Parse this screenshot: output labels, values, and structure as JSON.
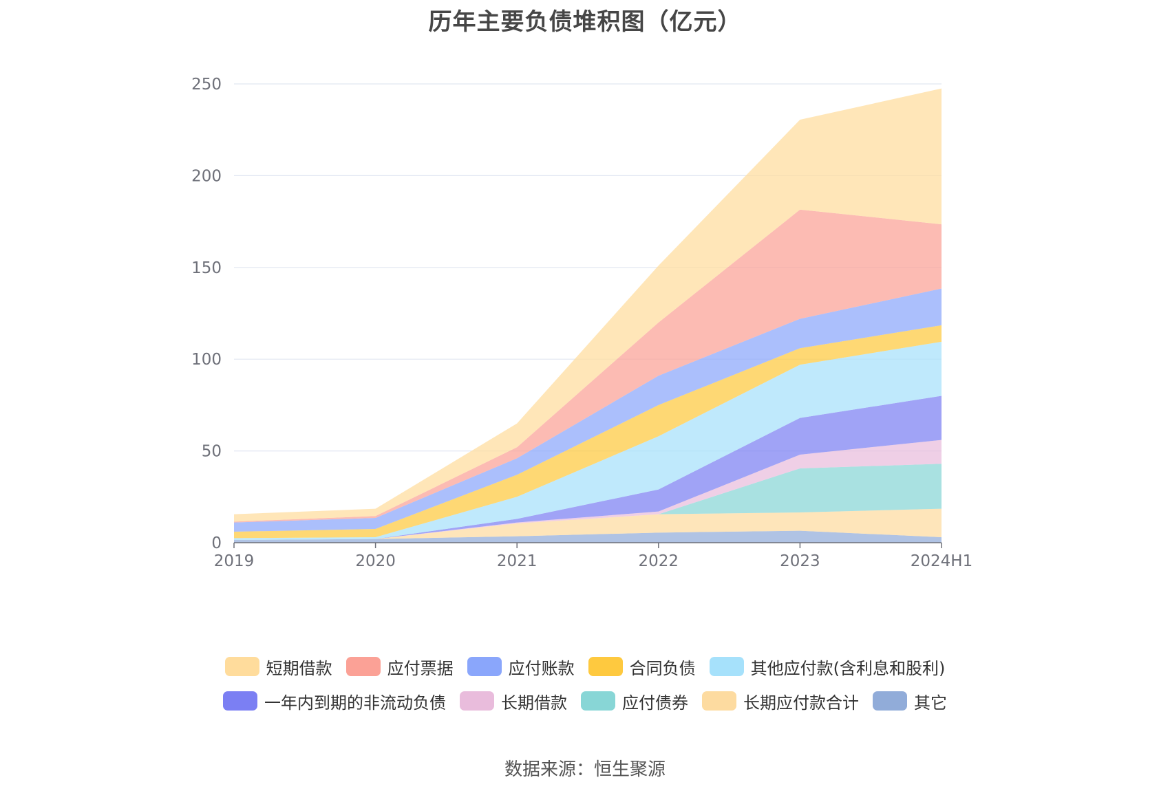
{
  "chart_data": {
    "type": "area",
    "stacked": true,
    "title": "历年主要负债堆积图（亿元）",
    "xlabel": "",
    "ylabel": "",
    "categories": [
      "2019",
      "2020",
      "2021",
      "2022",
      "2023",
      "2024H1"
    ],
    "ylim": [
      0,
      250
    ],
    "yticks": [
      "0",
      "50",
      "100",
      "150",
      "200",
      "250"
    ],
    "grid": true,
    "legend_position": "bottom",
    "series": [
      {
        "name": "其它",
        "color": "#91acd9",
        "values": [
          1.5,
          2.0,
          3.5,
          5.5,
          6.5,
          3.0
        ]
      },
      {
        "name": "长期应付款合计",
        "color": "#fddba0",
        "values": [
          0.0,
          0.0,
          7.0,
          10.0,
          10.0,
          15.5
        ]
      },
      {
        "name": "应付债券",
        "color": "#88d6d6",
        "values": [
          0.0,
          0.0,
          0.0,
          0.0,
          24.0,
          24.5
        ]
      },
      {
        "name": "长期借款",
        "color": "#e9bcdc",
        "values": [
          0.0,
          0.0,
          0.5,
          1.5,
          7.5,
          13.0
        ]
      },
      {
        "name": "一年内到期的非流动负债",
        "color": "#7b7ff3",
        "values": [
          0.0,
          0.0,
          2.0,
          12.0,
          20.0,
          24.0
        ]
      },
      {
        "name": "其他应付款(含利息和股利)",
        "color": "#a6e1fb",
        "values": [
          1.0,
          1.0,
          12.0,
          29.0,
          29.0,
          29.5
        ]
      },
      {
        "name": "合同负债",
        "color": "#fec93f",
        "values": [
          3.5,
          4.5,
          12.0,
          17.0,
          9.0,
          9.0
        ]
      },
      {
        "name": "应付账款",
        "color": "#8aa6fb",
        "values": [
          5.0,
          6.0,
          9.0,
          16.0,
          16.0,
          20.0
        ]
      },
      {
        "name": "应付票据",
        "color": "#fba196",
        "values": [
          0.5,
          1.0,
          6.0,
          29.0,
          59.5,
          35.0
        ]
      },
      {
        "name": "短期借款",
        "color": "#ffdc9c",
        "values": [
          4.0,
          4.0,
          13.0,
          31.0,
          49.0,
          74.0
        ]
      }
    ]
  },
  "legend": {
    "rows": [
      [
        {
          "name": "短期借款",
          "color": "#ffdc9c"
        },
        {
          "name": "应付票据",
          "color": "#fba196"
        },
        {
          "name": "应付账款",
          "color": "#8aa6fb"
        },
        {
          "name": "合同负债",
          "color": "#fec93f"
        },
        {
          "name": "其他应付款(含利息和股利)",
          "color": "#a6e1fb"
        }
      ],
      [
        {
          "name": "一年内到期的非流动负债",
          "color": "#7b7ff3"
        },
        {
          "name": "长期借款",
          "color": "#e9bcdc"
        },
        {
          "name": "应付债券",
          "color": "#88d6d6"
        },
        {
          "name": "长期应付款合计",
          "color": "#fddba0"
        },
        {
          "name": "其它",
          "color": "#91acd9"
        }
      ]
    ]
  },
  "source": "数据来源：恒生聚源",
  "colors": {
    "grid": "#e0e6f1",
    "axis": "#6e7079"
  }
}
